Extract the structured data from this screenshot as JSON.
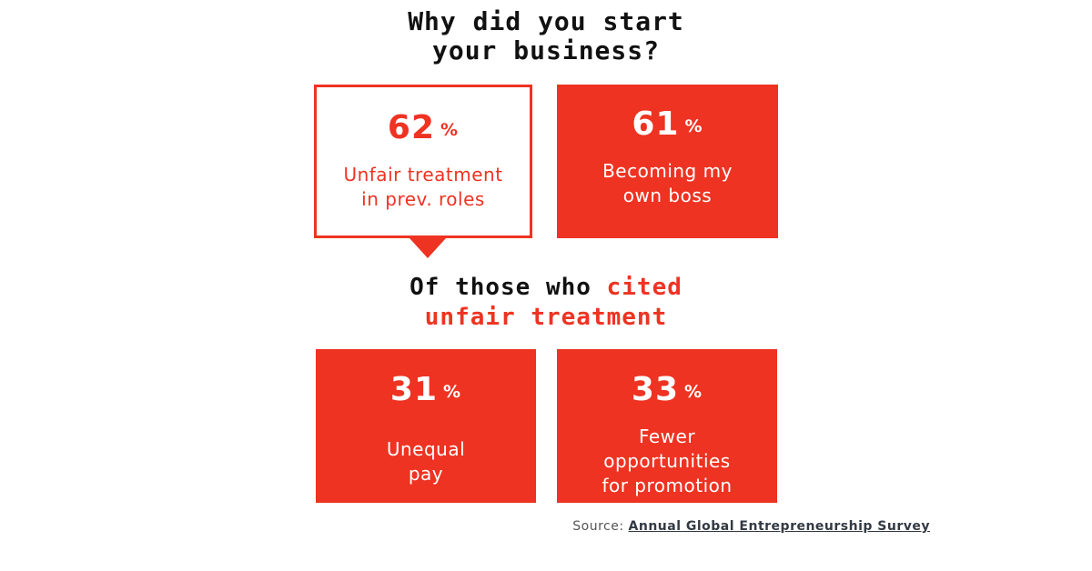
{
  "title": {
    "line1": "Why did you start",
    "line2": "your business?"
  },
  "cards_top": [
    {
      "value": "62",
      "unit": "%",
      "lines": [
        "Unfair treatment",
        "in prev. roles"
      ]
    },
    {
      "value": "61",
      "unit": "%",
      "lines": [
        "Becoming my",
        "own boss"
      ]
    }
  ],
  "subtitle": {
    "part1": "Of those who",
    "part2": "cited",
    "line2": "unfair treatment"
  },
  "cards_bottom": [
    {
      "value": "31",
      "unit": "%",
      "lines": [
        "Unequal",
        "pay"
      ]
    },
    {
      "value": "33",
      "unit": "%",
      "lines": [
        "Fewer",
        "opportunities",
        "for promotion"
      ]
    }
  ],
  "source": {
    "label": "Source:",
    "link_text": "Annual Global Entrepreneurship Survey"
  },
  "colors": {
    "accent": "#ee3322",
    "text": "#111111",
    "source": "#555555"
  }
}
